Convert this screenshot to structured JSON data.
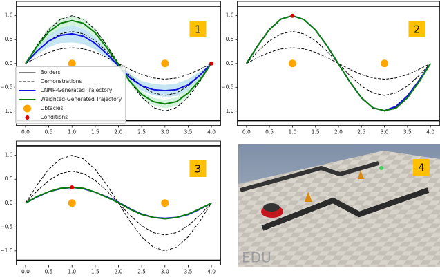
{
  "chart_data": [
    {
      "type": "line",
      "panel_label": "1",
      "legend": "lower left",
      "x": [
        0,
        0.25,
        0.5,
        0.75,
        1,
        1.25,
        1.5,
        1.75,
        2,
        2.25,
        2.5,
        2.75,
        3,
        3.25,
        3.5,
        3.75,
        4
      ],
      "xlim": [
        -0.2,
        4.2
      ],
      "ylim": [
        -1.3,
        1.3
      ],
      "xticks": [
        {
          "value": 0,
          "label": "0.0"
        },
        {
          "value": 0.5,
          "label": "0.5"
        },
        {
          "value": 1,
          "label": "1.0"
        },
        {
          "value": 1.5,
          "label": "1.5"
        },
        {
          "value": 2,
          "label": "2.0"
        },
        {
          "value": 2.5,
          "label": "2.5"
        },
        {
          "value": 3,
          "label": "3.0"
        },
        {
          "value": 3.5,
          "label": "3.5"
        },
        {
          "value": 4,
          "label": "4.0"
        }
      ],
      "yticks": [
        {
          "value": 1,
          "label": "1.0"
        },
        {
          "value": 0.5,
          "label": "0.5"
        },
        {
          "value": 0,
          "label": "0.0"
        },
        {
          "value": -0.5,
          "label": "−0.5"
        },
        {
          "value": -1,
          "label": "−1.0"
        }
      ],
      "borders": {
        "name": "Borders",
        "color": "#000000",
        "values": [
          1.2,
          -1.2
        ]
      },
      "series": [
        {
          "name": "Demonstrations",
          "color": "#000000",
          "dashed": true,
          "values": [
            0,
            0.383,
            0.707,
            0.924,
            1,
            0.924,
            0.707,
            0.383,
            0,
            -0.383,
            -0.707,
            -0.924,
            -1,
            -0.924,
            -0.707,
            -0.383,
            0
          ]
        },
        {
          "color": "#000000",
          "dashed": true,
          "values": [
            0,
            0.256,
            0.474,
            0.619,
            0.67,
            0.619,
            0.474,
            0.256,
            0,
            -0.256,
            -0.474,
            -0.619,
            -0.67,
            -0.619,
            -0.474,
            -0.256,
            0
          ]
        },
        {
          "color": "#000000",
          "dashed": true,
          "values": [
            0,
            0.126,
            0.233,
            0.305,
            0.33,
            0.305,
            0.233,
            0.126,
            0,
            -0.126,
            -0.233,
            -0.305,
            -0.33,
            -0.305,
            -0.233,
            -0.126,
            0
          ]
        },
        {
          "name": "CNMP-Generated Trajectory",
          "color": "#1010e0",
          "band_color": "#9fd3ea",
          "values": [
            0,
            0.26,
            0.47,
            0.59,
            0.62,
            0.57,
            0.42,
            0.2,
            -0.05,
            -0.3,
            -0.47,
            -0.55,
            -0.57,
            -0.55,
            -0.45,
            -0.25,
            0
          ],
          "band": {
            "upper": [
              0,
              0.33,
              0.6,
              0.75,
              0.8,
              0.73,
              0.55,
              0.28,
              -0.01,
              -0.22,
              -0.37,
              -0.43,
              -0.45,
              -0.42,
              -0.33,
              -0.17,
              0
            ],
            "lower": [
              0,
              0.19,
              0.34,
              0.43,
              0.44,
              0.41,
              0.29,
              0.12,
              -0.09,
              -0.38,
              -0.57,
              -0.67,
              -0.7,
              -0.68,
              -0.57,
              -0.33,
              0
            ]
          }
        },
        {
          "name": "Weighted-Generated Trajectory",
          "color": "#0a7d0a",
          "band_color": "#b8ebc4",
          "values": [
            0,
            0.36,
            0.66,
            0.84,
            0.9,
            0.84,
            0.64,
            0.33,
            -0.02,
            -0.38,
            -0.65,
            -0.8,
            -0.85,
            -0.8,
            -0.62,
            -0.35,
            0
          ],
          "band": {
            "upper": [
              0,
              0.42,
              0.75,
              0.95,
              1.0,
              0.94,
              0.73,
              0.4,
              0.04,
              -0.32,
              -0.58,
              -0.72,
              -0.76,
              -0.71,
              -0.54,
              -0.29,
              0
            ],
            "lower": [
              0,
              0.3,
              0.57,
              0.73,
              0.8,
              0.74,
              0.55,
              0.26,
              -0.08,
              -0.44,
              -0.72,
              -0.88,
              -0.94,
              -0.89,
              -0.7,
              -0.41,
              0
            ]
          }
        }
      ],
      "obstacles": {
        "name": "Obtacles",
        "color": "#ffa500",
        "x": [
          1,
          3
        ],
        "y": [
          0,
          0
        ]
      },
      "conditions": {
        "name": "Conditions",
        "color": "#e00000",
        "x": [
          4
        ],
        "y": [
          0
        ]
      }
    },
    {
      "type": "line",
      "panel_label": "2",
      "x": [
        0,
        0.25,
        0.5,
        0.75,
        1,
        1.25,
        1.5,
        1.75,
        2,
        2.25,
        2.5,
        2.75,
        3,
        3.25,
        3.5,
        3.75,
        4
      ],
      "xlim": [
        -0.2,
        4.2
      ],
      "ylim": [
        -1.3,
        1.3
      ],
      "xticks": [
        {
          "value": 0,
          "label": "0.0"
        },
        {
          "value": 0.5,
          "label": "0.5"
        },
        {
          "value": 1,
          "label": "1.0"
        },
        {
          "value": 1.5,
          "label": "1.5"
        },
        {
          "value": 2,
          "label": "2.0"
        },
        {
          "value": 2.5,
          "label": "2.5"
        },
        {
          "value": 3,
          "label": "3.0"
        },
        {
          "value": 3.5,
          "label": "3.5"
        },
        {
          "value": 4,
          "label": "4.0"
        }
      ],
      "yticks": [
        {
          "value": 1,
          "label": "1.0"
        },
        {
          "value": 0.5,
          "label": "0.5"
        },
        {
          "value": 0,
          "label": "0.0"
        },
        {
          "value": -0.5,
          "label": "−0.5"
        },
        {
          "value": -1,
          "label": "−1.0"
        }
      ],
      "borders": {
        "color": "#000000",
        "values": [
          1.2,
          -1.2
        ]
      },
      "series": [
        {
          "color": "#000000",
          "dashed": true,
          "values": [
            0,
            0.383,
            0.707,
            0.924,
            1,
            0.924,
            0.707,
            0.383,
            0,
            -0.383,
            -0.707,
            -0.924,
            -1,
            -0.924,
            -0.707,
            -0.383,
            0
          ]
        },
        {
          "color": "#000000",
          "dashed": true,
          "values": [
            0,
            0.256,
            0.474,
            0.619,
            0.67,
            0.619,
            0.474,
            0.256,
            0,
            -0.256,
            -0.474,
            -0.619,
            -0.67,
            -0.619,
            -0.474,
            -0.256,
            0
          ]
        },
        {
          "color": "#000000",
          "dashed": true,
          "values": [
            0,
            0.126,
            0.233,
            0.305,
            0.33,
            0.305,
            0.233,
            0.126,
            0,
            -0.126,
            -0.233,
            -0.305,
            -0.33,
            -0.305,
            -0.233,
            -0.126,
            0
          ]
        },
        {
          "color": "#1010e0",
          "values": [
            0,
            0.38,
            0.71,
            0.93,
            1.0,
            0.92,
            0.7,
            0.37,
            -0.01,
            -0.39,
            -0.72,
            -0.93,
            -0.99,
            -0.9,
            -0.68,
            -0.36,
            0
          ]
        },
        {
          "color": "#0a7d0a",
          "values": [
            0,
            0.38,
            0.71,
            0.93,
            1.0,
            0.92,
            0.7,
            0.37,
            -0.01,
            -0.39,
            -0.72,
            -0.93,
            -0.99,
            -0.94,
            -0.72,
            -0.39,
            0
          ]
        }
      ],
      "obstacles": {
        "color": "#ffa500",
        "x": [
          1,
          3
        ],
        "y": [
          0,
          0
        ]
      },
      "conditions": {
        "color": "#e00000",
        "x": [
          1
        ],
        "y": [
          1
        ]
      }
    },
    {
      "type": "line",
      "panel_label": "3",
      "x": [
        0,
        0.25,
        0.5,
        0.75,
        1,
        1.25,
        1.5,
        1.75,
        2,
        2.25,
        2.5,
        2.75,
        3,
        3.25,
        3.5,
        3.75,
        4
      ],
      "xlim": [
        -0.2,
        4.2
      ],
      "ylim": [
        -1.3,
        1.3
      ],
      "xticks": [
        {
          "value": 0,
          "label": "0.0"
        },
        {
          "value": 0.5,
          "label": "0.5"
        },
        {
          "value": 1,
          "label": "1.0"
        },
        {
          "value": 1.5,
          "label": "1.5"
        },
        {
          "value": 2,
          "label": "2.0"
        },
        {
          "value": 2.5,
          "label": "2.5"
        },
        {
          "value": 3,
          "label": "3.0"
        },
        {
          "value": 3.5,
          "label": "3.5"
        },
        {
          "value": 4,
          "label": "4.0"
        }
      ],
      "yticks": [
        {
          "value": 1,
          "label": "1.0"
        },
        {
          "value": 0.5,
          "label": "0.5"
        },
        {
          "value": 0,
          "label": "0.0"
        },
        {
          "value": -0.5,
          "label": "−0.5"
        },
        {
          "value": -1,
          "label": "−1.0"
        }
      ],
      "borders": {
        "color": "#000000",
        "values": [
          1.2,
          -1.2
        ]
      },
      "series": [
        {
          "color": "#000000",
          "dashed": true,
          "values": [
            0,
            0.383,
            0.707,
            0.924,
            1,
            0.924,
            0.707,
            0.383,
            0,
            -0.383,
            -0.707,
            -0.924,
            -1,
            -0.924,
            -0.707,
            -0.383,
            0
          ]
        },
        {
          "color": "#000000",
          "dashed": true,
          "values": [
            0,
            0.256,
            0.474,
            0.619,
            0.67,
            0.619,
            0.474,
            0.256,
            0,
            -0.256,
            -0.474,
            -0.619,
            -0.67,
            -0.619,
            -0.474,
            -0.256,
            0
          ]
        },
        {
          "color": "#000000",
          "dashed": true,
          "values": [
            0,
            0.126,
            0.233,
            0.305,
            0.33,
            0.305,
            0.233,
            0.126,
            0,
            -0.126,
            -0.233,
            -0.305,
            -0.33,
            -0.305,
            -0.233,
            -0.126,
            0
          ]
        },
        {
          "color": "#1010e0",
          "values": [
            0,
            0.13,
            0.24,
            0.3,
            0.33,
            0.3,
            0.23,
            0.13,
            0.02,
            -0.12,
            -0.23,
            -0.3,
            -0.32,
            -0.3,
            -0.24,
            -0.13,
            0
          ]
        },
        {
          "color": "#0a7d0a",
          "values": [
            0,
            0.14,
            0.24,
            0.31,
            0.33,
            0.31,
            0.23,
            0.12,
            0.01,
            -0.13,
            -0.24,
            -0.3,
            -0.33,
            -0.3,
            -0.23,
            -0.12,
            0
          ]
        }
      ],
      "obstacles": {
        "color": "#ffa500",
        "x": [
          1,
          3
        ],
        "y": [
          0,
          0
        ]
      },
      "conditions": {
        "color": "#e00000",
        "x": [
          1
        ],
        "y": [
          0.33
        ]
      }
    }
  ],
  "image": {
    "panel_label": "4",
    "watermark": "EDU"
  }
}
